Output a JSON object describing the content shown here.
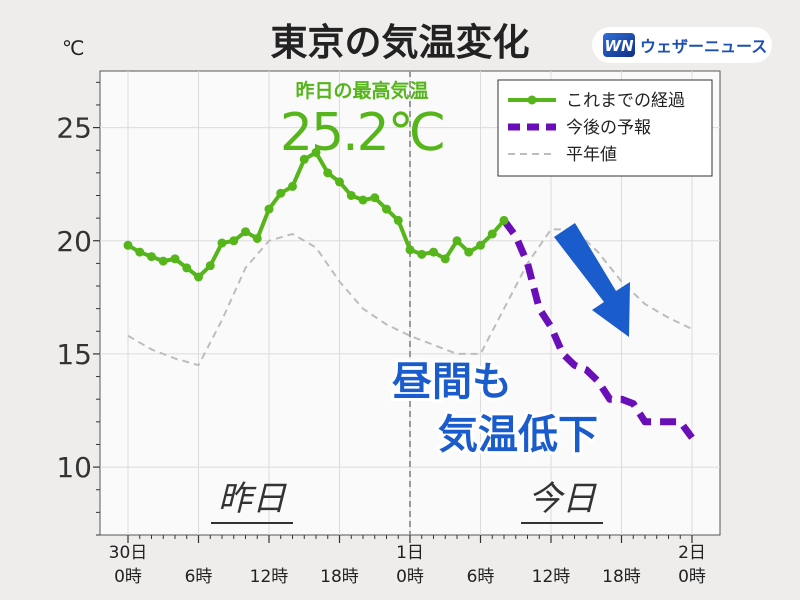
{
  "header": {
    "title": "東京の気温変化",
    "unit": "℃",
    "brand_badge": "WN",
    "brand_name": "ウェザーニュース"
  },
  "colors": {
    "observed": "#55b51a",
    "forecast": "#6a0fb8",
    "normal": "#bdbdbd",
    "annotation": "#1a5ccc",
    "brand": "#1d4fb3"
  },
  "annotations": {
    "max_label": "昨日の最高気温",
    "max_value": "25.2℃",
    "callout_line1": "昼間も",
    "callout_line2": "気温低下",
    "day_yesterday": "昨日",
    "day_today": "今日"
  },
  "chart_data": {
    "type": "line",
    "title": "東京の気温変化",
    "ylabel": "℃",
    "xlim": [
      0,
      48
    ],
    "ylim": [
      7,
      27.5
    ],
    "yticks": [
      10,
      15,
      20,
      25
    ],
    "xticks": [
      {
        "x": 0,
        "label": [
          "30日",
          "0時"
        ]
      },
      {
        "x": 6,
        "label": [
          "",
          "6時"
        ]
      },
      {
        "x": 12,
        "label": [
          "",
          "12時"
        ]
      },
      {
        "x": 18,
        "label": [
          "",
          "18時"
        ]
      },
      {
        "x": 24,
        "label": [
          "1日",
          "0時"
        ]
      },
      {
        "x": 30,
        "label": [
          "",
          "6時"
        ]
      },
      {
        "x": 36,
        "label": [
          "",
          "12時"
        ]
      },
      {
        "x": 42,
        "label": [
          "",
          "18時"
        ]
      },
      {
        "x": 48,
        "label": [
          "2日",
          "0時"
        ]
      }
    ],
    "day_divider_x": 24,
    "grid": true,
    "legend_position": "top-right",
    "series": [
      {
        "name": "これまでの経過",
        "style": "solid-markers",
        "x": [
          0,
          1,
          2,
          3,
          4,
          5,
          6,
          7,
          8,
          9,
          10,
          11,
          12,
          13,
          14,
          15,
          16,
          17,
          18,
          19,
          20,
          21,
          22,
          23,
          24,
          25,
          26,
          27,
          28,
          29,
          30,
          31,
          32
        ],
        "y": [
          19.8,
          19.5,
          19.3,
          19.1,
          19.2,
          18.8,
          18.4,
          18.9,
          19.9,
          20.0,
          20.4,
          20.1,
          21.4,
          22.1,
          22.4,
          23.6,
          23.9,
          23.0,
          22.6,
          22.0,
          21.8,
          21.9,
          21.4,
          20.9,
          19.6,
          19.4,
          19.5,
          19.2,
          20.0,
          19.5,
          19.8,
          20.3,
          20.9
        ]
      },
      {
        "name": "今後の予報",
        "style": "dashed-thick",
        "x": [
          32,
          33,
          34,
          35,
          36,
          37,
          38,
          39,
          40,
          41,
          42,
          43,
          44,
          45,
          46,
          47,
          48
        ],
        "y": [
          20.9,
          20.2,
          19.0,
          17.0,
          16.2,
          15.0,
          14.5,
          14.3,
          13.8,
          13.0,
          13.0,
          12.8,
          12.0,
          12.0,
          12.0,
          12.0,
          11.3
        ]
      },
      {
        "name": "平年値",
        "style": "dashed-thin",
        "x": [
          0,
          2,
          4,
          6,
          8,
          10,
          12,
          14,
          16,
          18,
          20,
          22,
          24,
          26,
          28,
          30,
          32,
          34,
          36,
          38,
          40,
          42,
          44,
          46,
          48
        ],
        "y": [
          15.8,
          15.2,
          14.8,
          14.5,
          16.5,
          18.8,
          20.0,
          20.3,
          19.7,
          18.2,
          17.0,
          16.3,
          15.8,
          15.4,
          15.0,
          15.0,
          17.0,
          19.0,
          20.5,
          20.5,
          19.5,
          18.2,
          17.2,
          16.6,
          16.1
        ]
      }
    ]
  }
}
